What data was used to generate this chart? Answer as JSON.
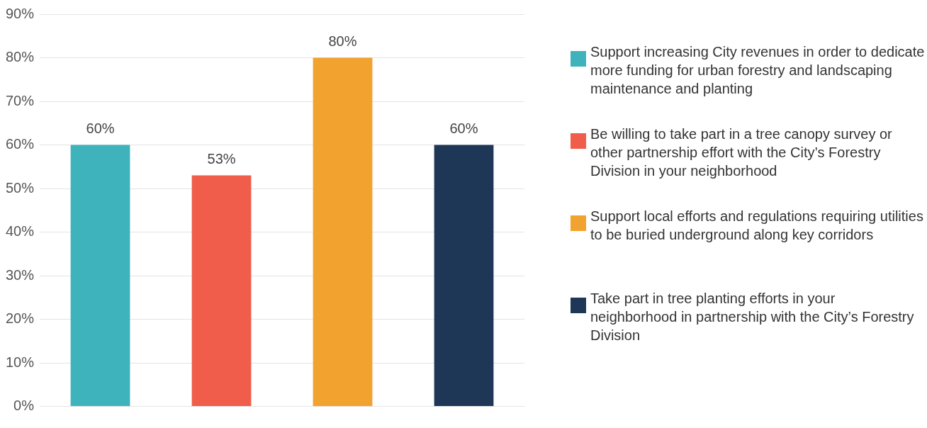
{
  "chart_data": {
    "type": "bar",
    "categories": [
      null,
      null,
      null,
      null
    ],
    "series": [
      {
        "name": "Support increasing City revenues in order to dedicate more funding for urban forestry and landscaping maintenance and planting",
        "color": "#3fb3bb",
        "values": [
          60,
          null,
          null,
          null
        ],
        "value_labels": [
          "60%",
          null,
          null,
          null
        ]
      },
      {
        "name": "Be willing to take part in a tree canopy survey or other partnership effort with the City’s Forestry Division in your neighborhood",
        "color": "#f05d4a",
        "values": [
          null,
          53,
          null,
          null
        ],
        "value_labels": [
          null,
          "53%",
          null,
          null
        ]
      },
      {
        "name": "Support local efforts and regulations requiring utilities to be buried underground along key corridors",
        "color": "#f2a22e",
        "values": [
          null,
          null,
          80,
          null
        ],
        "value_labels": [
          null,
          null,
          "80%",
          null
        ]
      },
      {
        "name": "Take part in tree planting efforts in your neighborhood in partnership with the City’s Forestry Division",
        "color": "#1f3757",
        "values": [
          null,
          null,
          null,
          60
        ],
        "value_labels": [
          null,
          null,
          null,
          "60%"
        ]
      }
    ],
    "ylim": [
      0,
      90
    ],
    "yticks": [
      {
        "value": 0,
        "label": "0%"
      },
      {
        "value": 10,
        "label": "10%"
      },
      {
        "value": 20,
        "label": "20%"
      },
      {
        "value": 30,
        "label": "30%"
      },
      {
        "value": 40,
        "label": "40%"
      },
      {
        "value": 50,
        "label": "50%"
      },
      {
        "value": 60,
        "label": "60%"
      },
      {
        "value": 70,
        "label": "70%"
      },
      {
        "value": 80,
        "label": "80%"
      },
      {
        "value": 90,
        "label": "90%"
      }
    ],
    "grid": "y",
    "legend": "right"
  }
}
